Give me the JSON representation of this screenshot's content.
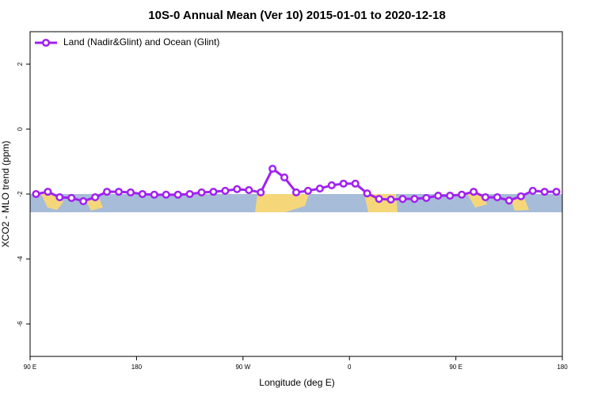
{
  "chart_data": {
    "type": "line",
    "title": "10S-0 Annual Mean (Ver 10)   2015-01-01 to 2020-12-18",
    "x_label": "Longitude (deg E)",
    "y_label": "XCO2 - MLO trend (ppm)",
    "xlim": [
      90,
      540
    ],
    "xticks": [
      {
        "value": 90,
        "label": "90 E"
      },
      180,
      {
        "value": 270,
        "label": "90 W"
      },
      {
        "value": 360,
        "label": "0"
      },
      {
        "value": 450,
        "label": "90 E"
      },
      {
        "value": 540,
        "label": "180"
      }
    ],
    "ylim": [
      -7,
      3
    ],
    "yticks": [
      -6,
      -4,
      -2,
      0,
      2
    ],
    "legend": "top-left",
    "x": [
      95,
      105,
      115,
      125,
      135,
      145,
      155,
      165,
      175,
      185,
      195,
      205,
      215,
      225,
      235,
      245,
      255,
      265,
      275,
      285,
      295,
      305,
      315,
      325,
      335,
      345,
      355,
      365,
      375,
      385,
      395,
      405,
      415,
      425,
      435,
      445,
      455,
      465,
      475,
      485,
      495,
      505,
      515,
      525,
      535
    ],
    "series": [
      {
        "name": "Land (Nadir&Glint) and Ocean (Glint)",
        "color": "#a020f0",
        "values": [
          -2.0,
          -1.93,
          -2.1,
          -2.12,
          -2.22,
          -2.1,
          -1.93,
          -1.93,
          -1.95,
          -2.0,
          -2.02,
          -2.02,
          -2.02,
          -2.0,
          -1.95,
          -1.93,
          -1.9,
          -1.85,
          -1.88,
          -1.95,
          -1.22,
          -1.49,
          -1.95,
          -1.9,
          -1.83,
          -1.73,
          -1.68,
          -1.68,
          -1.98,
          -2.15,
          -2.17,
          -2.15,
          -2.15,
          -2.12,
          -2.05,
          -2.05,
          -2.02,
          -1.93,
          -2.1,
          -2.1,
          -2.2,
          -2.07,
          -1.9,
          -1.93,
          -1.93
        ]
      }
    ]
  }
}
